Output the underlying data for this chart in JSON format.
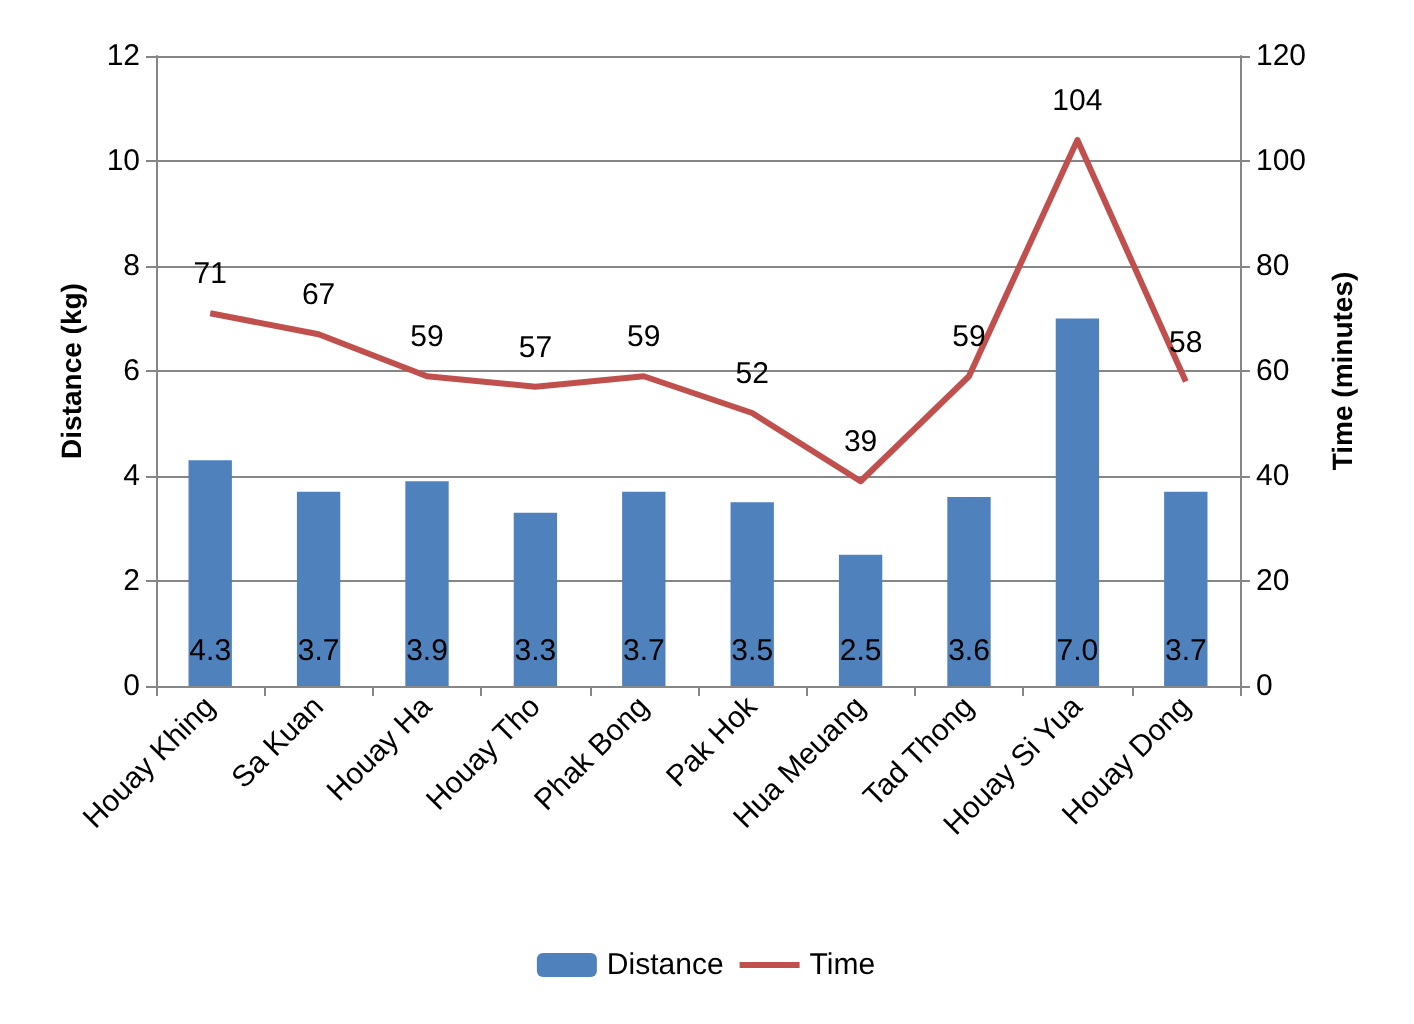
{
  "chart_data": {
    "type": "bar",
    "categories": [
      "Houay Khing",
      "Sa Kuan",
      "Houay Ha",
      "Houay Tho",
      "Phak Bong",
      "Pak Hok",
      "Hua Meuang",
      "Tad Thong",
      "Houay Si Yua",
      "Houay Dong"
    ],
    "series": [
      {
        "name": "Distance",
        "color": "#4f81bd",
        "values": [
          4.3,
          3.7,
          3.9,
          3.3,
          3.7,
          3.5,
          2.5,
          3.6,
          7.0,
          3.7
        ],
        "value_labels": [
          "4.3",
          "3.7",
          "3.9",
          "3.3",
          "3.7",
          "3.5",
          "2.5",
          "3.6",
          "7.0",
          "3.7"
        ]
      },
      {
        "name": "Time",
        "type": "line",
        "axis": "y2",
        "color": "#c0504d",
        "values": [
          71,
          67,
          59,
          57,
          59,
          52,
          39,
          59,
          104,
          58
        ],
        "value_labels": [
          "71",
          "67",
          "59",
          "57",
          "59",
          "52",
          "39",
          "59",
          "104",
          "58"
        ]
      }
    ],
    "ylabel": "Distance (kg)",
    "y2label": "Time (minutes)",
    "ylim": [
      0,
      12
    ],
    "yticks": [
      0,
      2,
      4,
      6,
      8,
      10,
      12
    ],
    "y2lim": [
      0,
      120
    ],
    "y2ticks": [
      0,
      20,
      40,
      60,
      80,
      100,
      120
    ],
    "grid": "y",
    "legend": "bottom",
    "marker": "none",
    "line_style": "solid"
  }
}
